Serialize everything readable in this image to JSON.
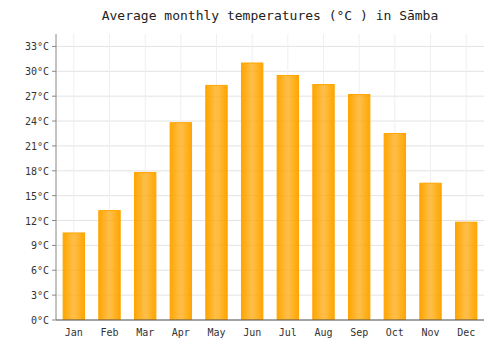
{
  "chart_data": {
    "type": "bar",
    "title": "Average monthly temperatures (°C ) in Sāmba",
    "categories": [
      "Jan",
      "Feb",
      "Mar",
      "Apr",
      "May",
      "Jun",
      "Jul",
      "Aug",
      "Sep",
      "Oct",
      "Nov",
      "Dec"
    ],
    "values": [
      10.5,
      13.2,
      17.8,
      23.8,
      28.3,
      31.0,
      29.5,
      28.4,
      27.2,
      22.5,
      16.5,
      11.8
    ],
    "color": "#FFA500",
    "ylim": [
      0,
      34.5
    ],
    "yticks": [
      {
        "value": 0,
        "label": "0°C"
      },
      {
        "value": 3,
        "label": "3°C"
      },
      {
        "value": 6,
        "label": "6°C"
      },
      {
        "value": 9,
        "label": "9°C"
      },
      {
        "value": 12,
        "label": "12°C"
      },
      {
        "value": 15,
        "label": "15°C"
      },
      {
        "value": 18,
        "label": "18°C"
      },
      {
        "value": 21,
        "label": "21°C"
      },
      {
        "value": 24,
        "label": "24°C"
      },
      {
        "value": 27,
        "label": "27°C"
      },
      {
        "value": 30,
        "label": "30°C"
      },
      {
        "value": 33,
        "label": "33°C"
      }
    ],
    "grid": true
  }
}
